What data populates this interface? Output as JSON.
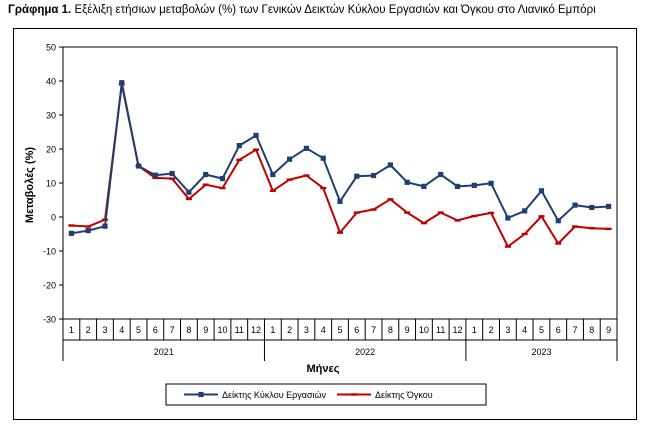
{
  "figure": {
    "title_prefix": "Γράφημα 1.",
    "title_text": "Εξέλιξη ετήσιων μεταβολών (%) των Γενικών Δεικτών Κύκλου Εργασιών και Όγκου στο Λιανικό Εμπόρι"
  },
  "chart_data": {
    "type": "line",
    "xlabel": "Μήνες",
    "ylabel": "Μεταβολές (%)",
    "ylim": [
      -30,
      50
    ],
    "yticks": [
      -30,
      -20,
      -10,
      0,
      10,
      20,
      30,
      40,
      50
    ],
    "grid": false,
    "legend_position": "bottom",
    "categories": [
      "1",
      "2",
      "3",
      "4",
      "5",
      "6",
      "7",
      "8",
      "9",
      "10",
      "11",
      "12",
      "1",
      "2",
      "3",
      "4",
      "5",
      "6",
      "7",
      "8",
      "9",
      "10",
      "11",
      "12",
      "1",
      "2",
      "3",
      "4",
      "5",
      "6",
      "7",
      "8",
      "9"
    ],
    "years": [
      {
        "label": "2021",
        "count": 12
      },
      {
        "label": "2022",
        "count": 12
      },
      {
        "label": "2023",
        "count": 9
      }
    ],
    "series": [
      {
        "name": "Δείκτης Κύκλου Εργασιών",
        "color": "#1f3f73",
        "marker": "square",
        "values": [
          -4.8,
          -4.0,
          -2.7,
          39.5,
          15.0,
          12.3,
          12.8,
          7.3,
          12.5,
          11.3,
          21.0,
          24.0,
          12.5,
          17.0,
          20.2,
          17.3,
          4.6,
          12.0,
          12.2,
          15.3,
          10.2,
          9.0,
          12.5,
          9.0,
          9.3,
          9.9,
          -0.3,
          1.8,
          7.7,
          -1.1,
          3.5,
          2.8,
          3.1
        ]
      },
      {
        "name": "Δείκτης Όγκου",
        "color": "#c00000",
        "marker": "dash",
        "values": [
          -2.5,
          -2.8,
          -0.8,
          39.0,
          15.0,
          11.5,
          11.3,
          5.3,
          9.5,
          8.5,
          16.8,
          19.8,
          7.7,
          11.0,
          12.2,
          8.5,
          -4.6,
          1.3,
          2.2,
          5.2,
          1.3,
          -1.8,
          1.3,
          -1.0,
          0.3,
          1.2,
          -8.7,
          -5.0,
          0.2,
          -7.8,
          -2.8,
          -3.3,
          -3.5
        ]
      }
    ]
  }
}
